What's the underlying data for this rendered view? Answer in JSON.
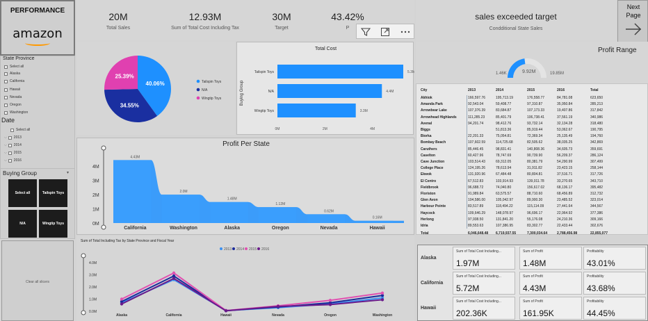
{
  "logo": {
    "title": "PERFORMANCE",
    "brand": "amazon"
  },
  "kpis": [
    {
      "value": "20M",
      "label": "Total Sales"
    },
    {
      "value": "12.93M",
      "label": "Sum of Total Cost Including Tax"
    },
    {
      "value": "30M",
      "label": "Target"
    },
    {
      "value": "43.42%",
      "label": "P"
    }
  ],
  "target_card": {
    "title": "sales exceeded target",
    "subtitle": "Condditional State Sales"
  },
  "next_page": {
    "label": "Next Page"
  },
  "slicers": {
    "state_title": "State Province",
    "states": [
      "Select all",
      "Alaska",
      "California",
      "Hawaii",
      "Nevada",
      "Oregon",
      "Washington"
    ],
    "date_title": "Date",
    "dates": [
      "Select all",
      "2013",
      "2014",
      "2015",
      "2016"
    ],
    "buying_group_title": "Buying Group",
    "buying_tiles": [
      "Select all",
      "Tailspin Toys",
      "N/A",
      "Wingtip Toys"
    ],
    "clear": "Clear all slicers"
  },
  "pie": {
    "legend": [
      {
        "name": "Tailspin Toys",
        "color": "#1e90ff"
      },
      {
        "name": "N/A",
        "color": "#1a2fa0"
      },
      {
        "name": "Wingtip Toys",
        "color": "#e040b0"
      }
    ]
  },
  "total_cost": {
    "title": "Total Cost",
    "ylabel": "Buying Group",
    "ticks": [
      "0M",
      "2M",
      "4M"
    ]
  },
  "profit_range": {
    "title": "Profit Range",
    "min": "1.46K",
    "value": "9.92M",
    "max": "19.85M"
  },
  "profit_state": {
    "title": "Profit Per State",
    "yticks": [
      "4M",
      "3M",
      "2M",
      "1M",
      "0M"
    ]
  },
  "line_chart": {
    "title": "Sum of Total Including Tax by State Province and Fiscal Year",
    "yticks": [
      "4.0M",
      "3.0M",
      "2.0M",
      "1.0M",
      "0.0M"
    ]
  },
  "city_table": {
    "headers": [
      "City",
      "2013",
      "2014",
      "2015",
      "2016",
      "Total"
    ],
    "rows": [
      [
        "Akhiok",
        "166,597.76",
        "195,713.19",
        "176,558.77",
        "84,781.08",
        "623,650"
      ],
      [
        "Amanda Park",
        "92,543.04",
        "59,408.77",
        "97,310.87",
        "35,950.84",
        "285,213"
      ],
      [
        "Arrowbear Lake",
        "107,376.39",
        "83,684.87",
        "107,173.33",
        "19,407.86",
        "317,842"
      ],
      [
        "Arrowhead Highlands",
        "111,285.23",
        "85,401.79",
        "106,738.41",
        "37,561.19",
        "340,986"
      ],
      [
        "Avenal",
        "94,201.74",
        "98,412.76",
        "93,732.14",
        "32,134.28",
        "318,480"
      ],
      [
        "Biggs",
        "",
        "51,813.36",
        "85,919.44",
        "53,062.67",
        "190,795"
      ],
      [
        "Biorka",
        "22,201.33",
        "75,054.81",
        "72,369.34",
        "25,135.49",
        "194,760"
      ],
      [
        "Bombay Beach",
        "107,602.59",
        "114,725.68",
        "82,505.62",
        "38,035.25",
        "342,869"
      ],
      [
        "Caruthers",
        "85,446.45",
        "98,831.41",
        "140,808.36",
        "34,605.73",
        "359,691"
      ],
      [
        "Caselton",
        "60,427.96",
        "78,747.69",
        "90,739.90",
        "56,209.37",
        "286,124"
      ],
      [
        "Cave Junction",
        "103,514.43",
        "69,312.05",
        "80,381.79",
        "54,290.99",
        "307,499"
      ],
      [
        "College Place",
        "124,195.26",
        "78,613.94",
        "31,911.82",
        "23,423.15",
        "258,144"
      ],
      [
        "Ekwok",
        "131,920.96",
        "67,484.48",
        "80,804.81",
        "37,516.71",
        "317,726"
      ],
      [
        "El Centro",
        "67,512.83",
        "103,914.93",
        "139,011.78",
        "33,270.65",
        "343,710"
      ],
      [
        "Fieldbrook",
        "96,688.72",
        "74,040.80",
        "156,617.02",
        "68,136.17",
        "395,482"
      ],
      [
        "Floriston",
        "91,989.84",
        "63,575.57",
        "88,710.60",
        "68,456.89",
        "312,732"
      ],
      [
        "Glen Avon",
        "104,586.00",
        "105,042.97",
        "89,900.30",
        "23,485.52",
        "323,014"
      ],
      [
        "Harbour Pointe",
        "83,517.89",
        "118,494.22",
        "115,114.09",
        "27,441.64",
        "344,567"
      ],
      [
        "Haycock",
        "109,646.29",
        "148,078.97",
        "96,696.17",
        "22,964.92",
        "377,386"
      ],
      [
        "Herlong",
        "97,938.50",
        "131,841.20",
        "55,176.08",
        "24,210.36",
        "309,166"
      ],
      [
        "Idria",
        "89,553.63",
        "107,386.95",
        "83,302.77",
        "22,433.44",
        "302,676"
      ],
      [
        "Total",
        "6,046,648.48",
        "6,719,937.55",
        "7,300,034.64",
        "2,788,456.98",
        "22,855,077"
      ]
    ]
  },
  "matrix": {
    "col_labels": [
      "Sum of Total Cost Including...",
      "Sum of Profit",
      "Profitability"
    ],
    "rows": [
      {
        "state": "Alaska",
        "cost": "1.97M",
        "profit": "1.48M",
        "pct": "43.01%"
      },
      {
        "state": "California",
        "cost": "5.72M",
        "profit": "4.43M",
        "pct": "43.68%"
      },
      {
        "state": "Hawaii",
        "cost": "202.36K",
        "profit": "161.95K",
        "pct": "44.45%"
      }
    ]
  },
  "chart_data": [
    {
      "type": "pie",
      "categories": [
        "Tailspin Toys",
        "N/A",
        "Wingtip Toys"
      ],
      "values": [
        40.06,
        34.55,
        25.39
      ],
      "labels": [
        "40.06%",
        "34.55%",
        "25.39%"
      ],
      "colors": [
        "#1e90ff",
        "#1a2fa0",
        "#e040b0"
      ],
      "legend": "right"
    },
    {
      "type": "bar",
      "orientation": "horizontal",
      "title": "Total Cost",
      "categories": [
        "Tailspin Toys",
        "N/A",
        "Wingtip Toys"
      ],
      "values": [
        5.3,
        4.4,
        3.3
      ],
      "labels": [
        "5.3M",
        "4.4M",
        "3.3M"
      ],
      "ylabel": "Buying Group",
      "xlim": [
        0,
        5.5
      ]
    },
    {
      "type": "area",
      "title": "Profit Per State",
      "categories": [
        "California",
        "Washington",
        "Alaska",
        "Oregon",
        "Nevada",
        "Hawaii"
      ],
      "values": [
        4.43,
        2.0,
        1.48,
        1.12,
        0.62,
        0.16
      ],
      "labels": [
        "4.43M",
        "2.0M",
        "1.48M",
        "1.12M",
        "0.62M",
        "0.16M"
      ],
      "ylim": [
        0,
        4.5
      ]
    },
    {
      "type": "line",
      "title": "Sum of Total Including Tax by State Province and Fiscal Year",
      "categories": [
        "Alaska",
        "California",
        "Hawaii",
        "Nevada",
        "Oregon",
        "Washington"
      ],
      "series": [
        {
          "name": "2013",
          "color": "#3a8ff0",
          "values": [
            0.7,
            2.6,
            0.05,
            0.3,
            0.6,
            1.1
          ]
        },
        {
          "name": "2014",
          "color": "#1a2a9a",
          "values": [
            0.8,
            2.9,
            0.06,
            0.35,
            0.7,
            1.3
          ]
        },
        {
          "name": "2015",
          "color": "#e050b0",
          "values": [
            1.0,
            3.15,
            0.06,
            0.45,
            0.9,
            1.5
          ]
        },
        {
          "name": "2016",
          "color": "#6a1a8a",
          "values": [
            0.6,
            2.7,
            0.04,
            0.4,
            0.55,
            0.95
          ]
        }
      ],
      "ylim": [
        0,
        4.0
      ],
      "legend": "top"
    },
    {
      "type": "gauge",
      "title": "Profit Range",
      "min": 1.46,
      "max": 19.85,
      "value": 9.92
    }
  ]
}
